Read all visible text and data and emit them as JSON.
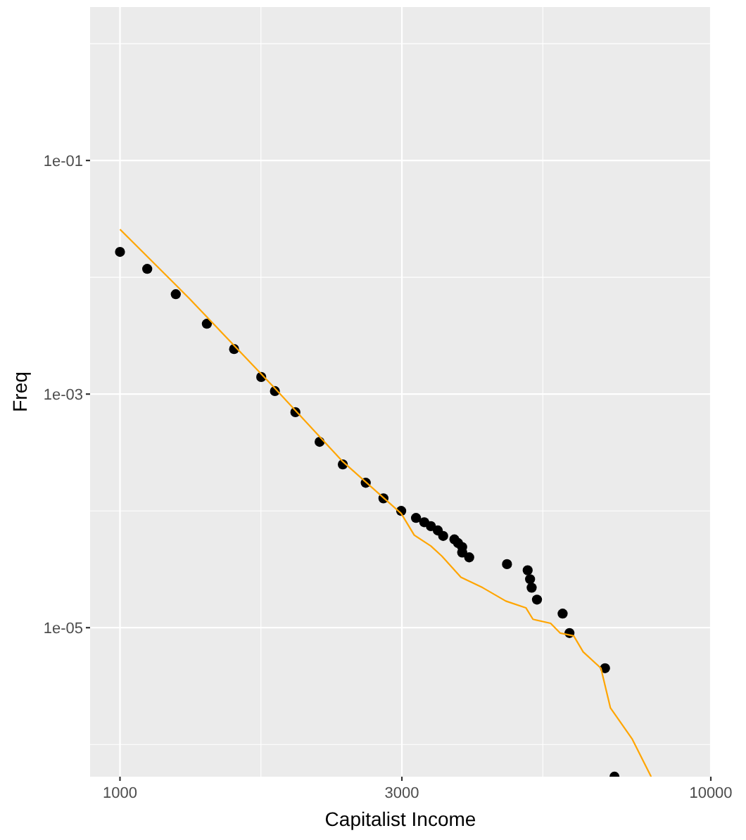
{
  "chart_data": {
    "type": "scatter",
    "xlabel": "Capitalist Income",
    "ylabel": "Freq",
    "log": "xy",
    "grid": true,
    "xlim": [
      890,
      10000
    ],
    "ylim": [
      5.3e-07,
      2.06
    ],
    "xticks": [
      1000,
      3000,
      {
        "value": 10000,
        "label": "10000"
      }
    ],
    "yticks": [
      {
        "value": 0.1,
        "label": "1e-01"
      },
      {
        "value": 0.001,
        "label": "1e-03"
      },
      {
        "value": 1e-05,
        "label": "1e-05"
      }
    ],
    "series": [
      {
        "marker": "circle",
        "color": "#000000",
        "x": [
          1000,
          1112,
          1243,
          1403,
          1560,
          1734,
          1829,
          1981,
          2177,
          2383,
          2606,
          2792,
          2992,
          3170,
          3273,
          3359,
          3451,
          3524,
          3681,
          3735,
          3795,
          3795,
          3900,
          4519,
          4898,
          4944,
          4975,
          5079,
          5613,
          5765,
          6622,
          6870
        ],
        "values": [
          0.0165,
          0.0118,
          0.00716,
          0.004,
          0.00243,
          0.0014,
          0.00106,
          0.0007,
          0.00039,
          0.00025,
          0.000174,
          0.000128,
          0.0001,
          8.7e-05,
          8e-05,
          7.4e-05,
          6.8e-05,
          6.1e-05,
          5.7e-05,
          5.3e-05,
          4.9e-05,
          4.4e-05,
          4e-05,
          3.5e-05,
          3.1e-05,
          2.6e-05,
          2.2e-05,
          1.74e-05,
          1.32e-05,
          9e-06,
          4.5e-06,
          5.3e-07
        ]
      },
      {
        "type": "line",
        "color": "#ffa500",
        "x": [
          1000,
          1310,
          1829,
          2383,
          2992,
          3148,
          3359,
          3506,
          3776,
          4111,
          4498,
          4864,
          5000,
          5357,
          5559,
          5861,
          6081,
          6516,
          6761,
          7356,
          7925
        ],
        "values": [
          0.0257,
          0.00659,
          0.00112,
          0.000264,
          9.5e-05,
          6.2e-05,
          5e-05,
          4.1e-05,
          2.7e-05,
          2.2e-05,
          1.69e-05,
          1.48e-05,
          1.18e-05,
          1.09e-05,
          9e-06,
          8.5e-06,
          6.2e-06,
          4.5e-06,
          2.06e-06,
          1.12e-06,
          5.3e-07
        ]
      }
    ]
  }
}
